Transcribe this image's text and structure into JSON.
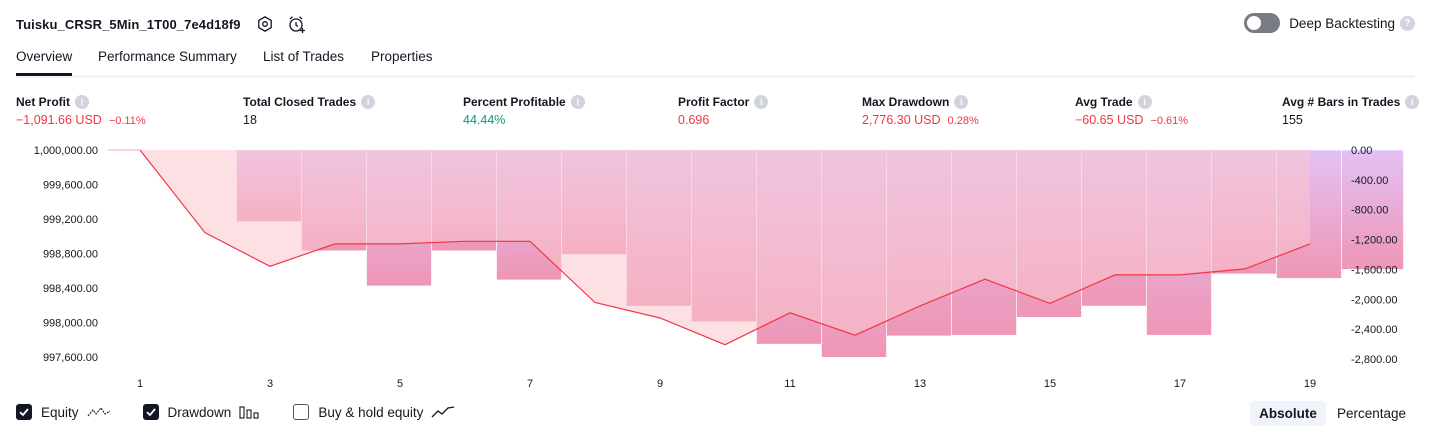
{
  "header": {
    "strategy_name": "Tuisku_CRSR_5Min_1T00_7e4d18f9",
    "settings_icon": "hexagon-gear-icon",
    "alert_icon": "alarm-clock-plus-icon",
    "deep_backtesting_label": "Deep Backtesting",
    "deep_backtesting_enabled": false
  },
  "tabs": [
    {
      "label": "Overview",
      "active": true
    },
    {
      "label": "Performance Summary",
      "active": false
    },
    {
      "label": "List of Trades",
      "active": false
    },
    {
      "label": "Properties",
      "active": false
    }
  ],
  "metrics": [
    {
      "label": "Net Profit",
      "value": "−1,091.66 USD",
      "sub": "−0.11%",
      "color": "red"
    },
    {
      "label": "Total Closed Trades",
      "value": "18",
      "sub": "",
      "color": "default"
    },
    {
      "label": "Percent Profitable",
      "value": "44.44%",
      "sub": "",
      "color": "green"
    },
    {
      "label": "Profit Factor",
      "value": "0.696",
      "sub": "",
      "color": "red"
    },
    {
      "label": "Max Drawdown",
      "value": "2,776.30 USD",
      "sub": "0.28%",
      "color": "red"
    },
    {
      "label": "Avg Trade",
      "value": "−60.65 USD",
      "sub": "−0.61%",
      "color": "red"
    },
    {
      "label": "Avg # Bars in Trades",
      "value": "155",
      "sub": "",
      "color": "default"
    }
  ],
  "chart_data": {
    "type": "line",
    "x": [
      1,
      2,
      3,
      4,
      5,
      6,
      7,
      8,
      9,
      10,
      11,
      12,
      13,
      14,
      15,
      16,
      17,
      18,
      19
    ],
    "x_tick_labels": [
      "1",
      "3",
      "5",
      "7",
      "9",
      "11",
      "13",
      "15",
      "17",
      "19"
    ],
    "series": [
      {
        "values": [
          1000000,
          999040,
          998650,
          998910,
          998910,
          998940,
          998940,
          998230,
          998050,
          997740,
          998110,
          997850,
          998190,
          998500,
          998220,
          998550,
          998550,
          998620,
          998910
        ]
      }
    ],
    "drawdown_bars": [
      {
        "x": 1,
        "value": 0
      },
      {
        "x": 2,
        "value": -960
      },
      {
        "x": 3,
        "value": -1350
      },
      {
        "x": 4,
        "value": -1820
      },
      {
        "x": 5,
        "value": -1350
      },
      {
        "x": 6,
        "value": -1740
      },
      {
        "x": 7,
        "value": -1400
      },
      {
        "x": 8,
        "value": -2090
      },
      {
        "x": 9,
        "value": -2300
      },
      {
        "x": 10,
        "value": -2600
      },
      {
        "x": 11,
        "value": -2776.3
      },
      {
        "x": 12,
        "value": -2490
      },
      {
        "x": 13,
        "value": -2480
      },
      {
        "x": 14,
        "value": -2240
      },
      {
        "x": 15,
        "value": -2090
      },
      {
        "x": 16,
        "value": -2480
      },
      {
        "x": 17,
        "value": -1660
      },
      {
        "x": 18,
        "value": -1720
      },
      {
        "x": 19,
        "value": -1600
      }
    ],
    "left_axis": {
      "ticks": [
        "1,000,000.00",
        "999,600.00",
        "999,200.00",
        "998,800.00",
        "998,400.00",
        "998,000.00",
        "997,600.00"
      ],
      "range": [
        997400,
        1000000
      ]
    },
    "right_axis": {
      "ticks": [
        "0.00",
        "-400.00",
        "-800.00",
        "-1,200.00",
        "-1,600.00",
        "-2,000.00",
        "-2,400.00",
        "-2,800.00"
      ],
      "range": [
        -3000,
        0
      ]
    },
    "colors": {
      "equity_line": "#f23645",
      "equity_fill": "#fcc7cd",
      "drawdown_top": "#e1bcf3",
      "drawdown_bottom": "#ec9ab8",
      "drawdown_light": "#dcc4fb"
    },
    "grid": false
  },
  "legend": [
    {
      "label": "Equity",
      "checked": true,
      "icon": "equity-line-icon"
    },
    {
      "label": "Drawdown",
      "checked": true,
      "icon": "drawdown-bars-icon"
    },
    {
      "label": "Buy & hold equity",
      "checked": false,
      "icon": "buy-hold-line-icon"
    }
  ],
  "modes": [
    {
      "label": "Absolute",
      "active": true
    },
    {
      "label": "Percentage",
      "active": false
    }
  ]
}
